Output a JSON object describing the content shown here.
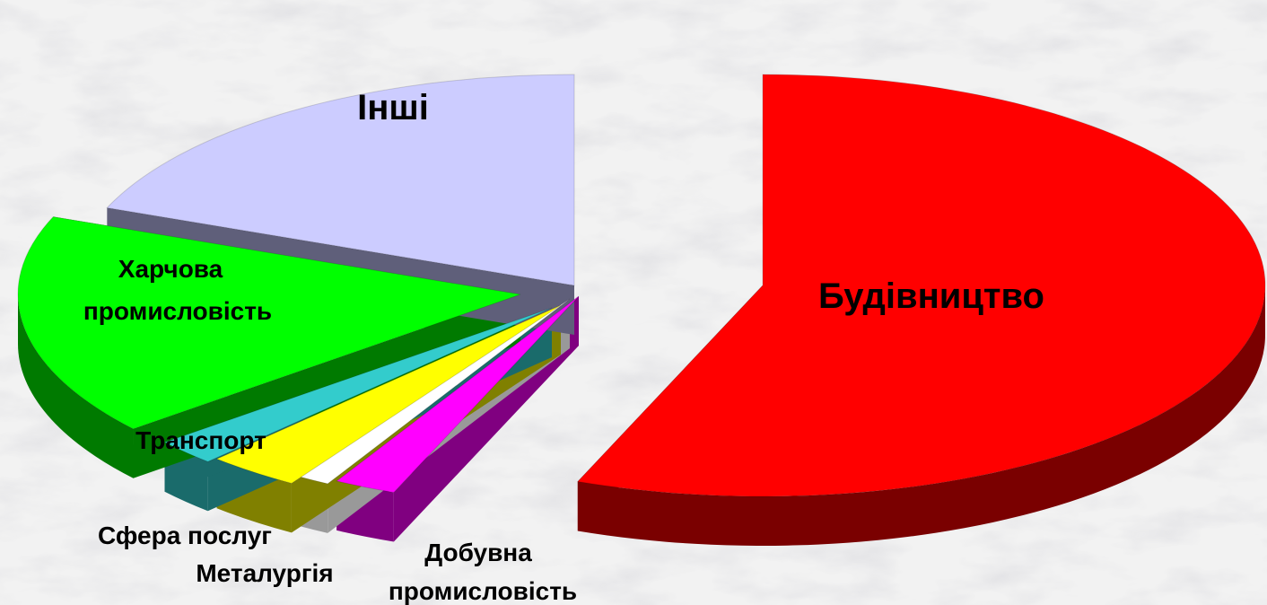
{
  "chart_data": {
    "type": "pie",
    "style": "3d-exploded",
    "title": "",
    "legend": "none",
    "categories": [
      "Будівництво",
      "Добувна промисловість",
      "Металургія",
      "Сфера послуг",
      "Транспорт",
      "Харчова промисловість",
      "Інші"
    ],
    "values": [
      56,
      2,
      1,
      3,
      2,
      17,
      19
    ],
    "colors": [
      "#ff0000",
      "#ff00ff",
      "#ffffff",
      "#ffff00",
      "#33cccc",
      "#00ff00",
      "#ccccff"
    ],
    "side_colors": [
      "#7a0000",
      "#800080",
      "#999999",
      "#808000",
      "#1a6b6b",
      "#007a00",
      "#5f5f7a"
    ],
    "labels": {
      "budivnytstvo": "Будівництво",
      "inshi": "Інші",
      "kharchova_line1": "Харчова",
      "kharchova_line2": "промисловість",
      "transport": "Транспорт",
      "sfera": "Сфера послуг",
      "metalurhiia": "Металургія",
      "dobuvna_line1": "Добувна",
      "dobuvna_line2": "промисловість"
    }
  }
}
